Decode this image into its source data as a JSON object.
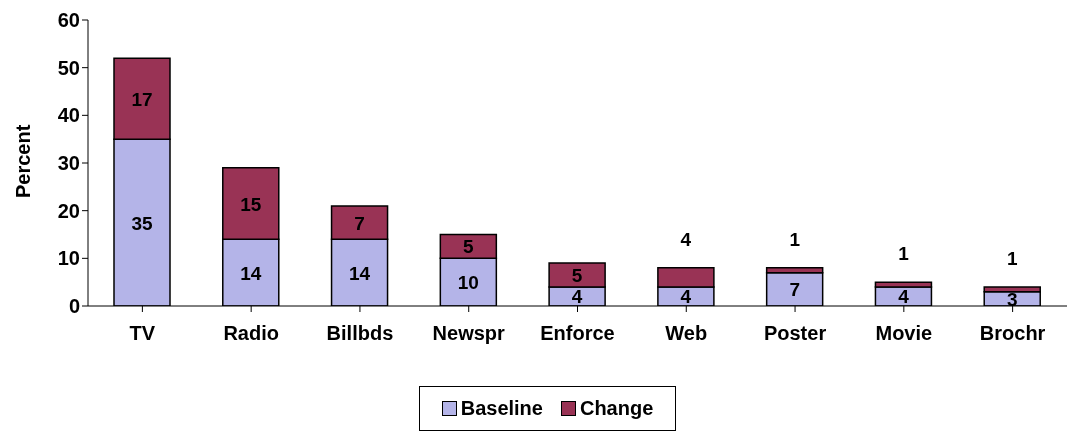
{
  "chart_data": {
    "type": "bar",
    "stacked": true,
    "ylabel": "Percent",
    "categories": [
      "TV",
      "Radio",
      "Billbds",
      "Newspr",
      "Enforce",
      "Web",
      "Poster",
      "Movie",
      "Brochr"
    ],
    "series": [
      {
        "name": "Baseline",
        "color": "#b4b4e8",
        "values": [
          35,
          14,
          14,
          10,
          4,
          4,
          7,
          4,
          3
        ]
      },
      {
        "name": "Change",
        "color": "#993355",
        "values": [
          17,
          15,
          7,
          5,
          5,
          4,
          1,
          1,
          1
        ]
      }
    ],
    "ylim": [
      0,
      60
    ],
    "yticks": [
      0,
      10,
      20,
      30,
      40,
      50,
      60
    ],
    "grid": false,
    "legend": "bottom",
    "data_labels": true
  }
}
